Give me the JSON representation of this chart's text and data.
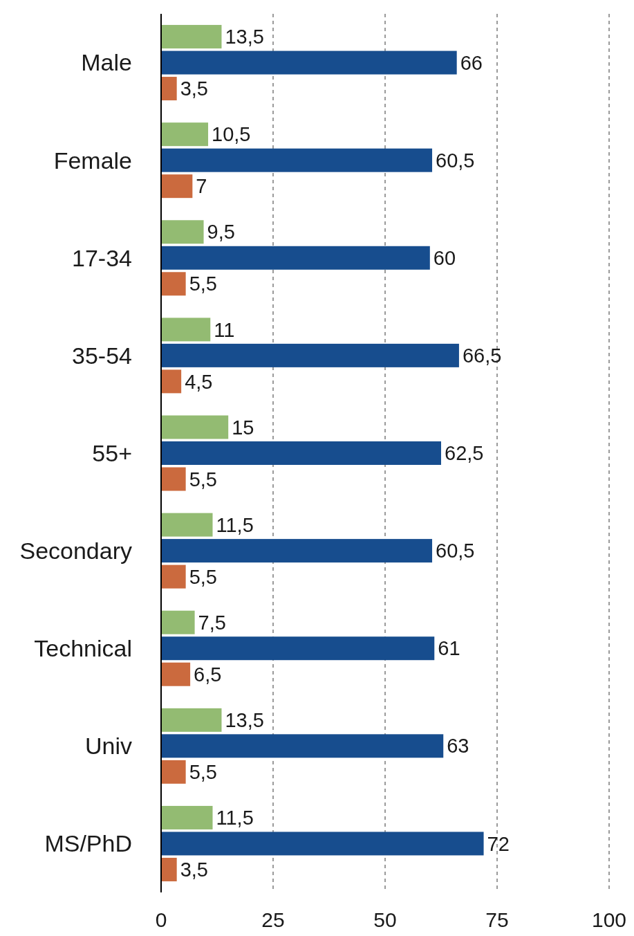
{
  "chart_data": {
    "type": "bar",
    "orientation": "horizontal",
    "categories": [
      "Male",
      "Female",
      "17-34",
      "35-54",
      "55+",
      "Secondary",
      "Technical",
      "Univ",
      "MS/PhD"
    ],
    "series": [
      {
        "color": "#93bb72",
        "values": [
          13.5,
          10.5,
          9.5,
          11,
          15,
          11.5,
          7.5,
          13.5,
          11.5
        ],
        "value_labels": [
          "13,5",
          "10,5",
          "9,5",
          "11",
          "15",
          "11,5",
          "7,5",
          "13,5",
          "11,5"
        ]
      },
      {
        "color": "#174d8e",
        "values": [
          66,
          60.5,
          60,
          66.5,
          62.5,
          60.5,
          61,
          63,
          72
        ],
        "value_labels": [
          "66",
          "60,5",
          "60",
          "66,5",
          "62,5",
          "60,5",
          "61",
          "63",
          "72"
        ]
      },
      {
        "color": "#cb6a3e",
        "values": [
          3.5,
          7,
          5.5,
          4.5,
          5.5,
          5.5,
          6.5,
          5.5,
          3.5
        ],
        "value_labels": [
          "3,5",
          "7",
          "5,5",
          "4,5",
          "5,5",
          "5,5",
          "6,5",
          "5,5",
          "3,5"
        ]
      }
    ],
    "xlim": [
      0,
      100
    ],
    "xticks": [
      0,
      25,
      50,
      75,
      100
    ],
    "grid": "x"
  }
}
